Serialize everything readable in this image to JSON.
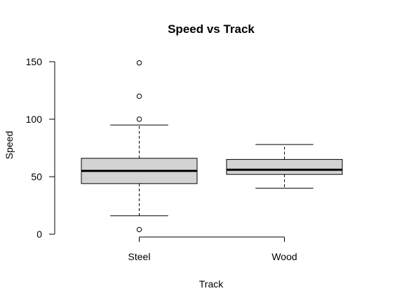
{
  "chart_data": {
    "type": "box",
    "title": "Speed vs Track",
    "xlabel": "Track",
    "ylabel": "Speed",
    "ylim": [
      0,
      150
    ],
    "yticks": [
      0,
      50,
      100,
      150
    ],
    "categories": [
      "Steel",
      "Wood"
    ],
    "boxes": [
      {
        "name": "Steel",
        "whisker_low": 16,
        "q1": 44,
        "median": 55,
        "q3": 66,
        "whisker_high": 95,
        "outliers": [
          4,
          100,
          120,
          149
        ]
      },
      {
        "name": "Wood",
        "whisker_low": 40,
        "q1": 52,
        "median": 56,
        "q3": 65,
        "whisker_high": 78,
        "outliers": []
      }
    ],
    "box_fill": "#d3d3d3",
    "grid": false,
    "legend": "none"
  }
}
